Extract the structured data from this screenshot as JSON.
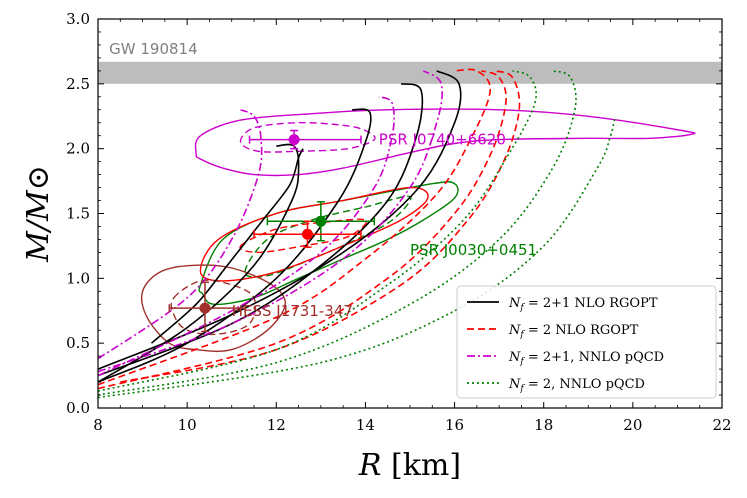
{
  "chart_data": {
    "type": "line",
    "xlabel": "R [km]",
    "ylabel": "M/M⊙",
    "xlim": [
      8,
      22
    ],
    "ylim": [
      0,
      3
    ],
    "xticks": [
      "8",
      "10",
      "12",
      "14",
      "16",
      "18",
      "20",
      "22"
    ],
    "yticks": [
      "0.0",
      "0.5",
      "1.0",
      "1.5",
      "2.0",
      "2.5",
      "3.0"
    ],
    "band": {
      "label": "GW 190814",
      "ymin": 2.5,
      "ymax": 2.67,
      "color": "#bdbdbd"
    },
    "legend": [
      {
        "label": "N_f = 2+1 NLO RGOPT",
        "color": "#000000",
        "dash": "solid"
      },
      {
        "label": "N_f = 2 NLO RGOPT",
        "color": "#ff0000",
        "dash": "dashed"
      },
      {
        "label": "N_f = 2+1, NNLO pQCD",
        "color": "#cc00cc",
        "dash": "dashdot"
      },
      {
        "label": "N_f = 2, NNLO pQCD",
        "color": "#008000",
        "dash": "dotted"
      }
    ],
    "series": [
      {
        "name": "nf21_rgopt_a",
        "group": 0,
        "points": [
          [
            8,
            0.2
          ],
          [
            10,
            0.62
          ],
          [
            11.5,
            1.1
          ],
          [
            12.35,
            1.6
          ],
          [
            12.5,
            1.85
          ],
          [
            12.4,
            2.02
          ],
          [
            12.0,
            2.02
          ]
        ]
      },
      {
        "name": "nf21_rgopt_b",
        "group": 0,
        "points": [
          [
            8,
            0.2
          ],
          [
            10,
            0.5
          ],
          [
            12,
            1.0
          ],
          [
            13.4,
            1.6
          ],
          [
            14,
            2.05
          ],
          [
            14.1,
            2.28
          ],
          [
            13.7,
            2.3
          ]
        ]
      },
      {
        "name": "nf21_rgopt_c",
        "group": 0,
        "points": [
          [
            8,
            0.25
          ],
          [
            11,
            0.65
          ],
          [
            13,
            1.1
          ],
          [
            14.5,
            1.6
          ],
          [
            15.15,
            2.1
          ],
          [
            15.25,
            2.45
          ],
          [
            14.8,
            2.5
          ]
        ]
      },
      {
        "name": "nf21_rgopt_d",
        "group": 0,
        "points": [
          [
            8,
            0.3
          ],
          [
            11,
            0.72
          ],
          [
            13.5,
            1.2
          ],
          [
            15.2,
            1.7
          ],
          [
            16,
            2.2
          ],
          [
            16.1,
            2.5
          ],
          [
            15.6,
            2.6
          ]
        ]
      },
      {
        "name": "nf21_rgopt_e",
        "group": 0,
        "points": [
          [
            9.2,
            0.5
          ],
          [
            10.2,
            0.8
          ],
          [
            10.9,
            1.1
          ],
          [
            11.7,
            1.45
          ],
          [
            12.3,
            1.72
          ],
          [
            12.5,
            1.93
          ],
          [
            12.6,
            2.0
          ]
        ]
      },
      {
        "name": "nf2_rgopt_a",
        "group": 1,
        "points": [
          [
            8,
            0.18
          ],
          [
            12,
            0.7
          ],
          [
            14,
            1.15
          ],
          [
            15.6,
            1.65
          ],
          [
            16.4,
            2.1
          ],
          [
            16.8,
            2.45
          ],
          [
            16.5,
            2.6
          ],
          [
            16.0,
            2.6
          ]
        ]
      },
      {
        "name": "nf2_rgopt_b",
        "group": 1,
        "points": [
          [
            8,
            0.15
          ],
          [
            12,
            0.5
          ],
          [
            14.5,
            1.0
          ],
          [
            16,
            1.5
          ],
          [
            16.8,
            1.95
          ],
          [
            17.15,
            2.35
          ],
          [
            17.0,
            2.55
          ],
          [
            16.6,
            2.6
          ]
        ]
      },
      {
        "name": "nf2_rgopt_c",
        "group": 1,
        "points": [
          [
            8.5,
            0.2
          ],
          [
            12,
            0.45
          ],
          [
            14.8,
            0.95
          ],
          [
            16.3,
            1.45
          ],
          [
            17.1,
            1.9
          ],
          [
            17.45,
            2.3
          ],
          [
            17.3,
            2.55
          ],
          [
            16.9,
            2.6
          ]
        ]
      },
      {
        "name": "nf21_pqcd_a",
        "group": 2,
        "points": [
          [
            8,
            0.38
          ],
          [
            10,
            0.85
          ],
          [
            11,
            1.3
          ],
          [
            11.6,
            1.8
          ],
          [
            11.65,
            2.1
          ],
          [
            11.5,
            2.25
          ],
          [
            11.2,
            2.3
          ]
        ]
      },
      {
        "name": "nf21_pqcd_b",
        "group": 2,
        "points": [
          [
            8,
            0.25
          ],
          [
            11,
            0.75
          ],
          [
            13,
            1.2
          ],
          [
            14.2,
            1.7
          ],
          [
            14.6,
            2.1
          ],
          [
            14.6,
            2.35
          ],
          [
            14.3,
            2.4
          ]
        ]
      },
      {
        "name": "nf21_pqcd_c",
        "group": 2,
        "points": [
          [
            8,
            0.28
          ],
          [
            11,
            0.65
          ],
          [
            13.5,
            1.15
          ],
          [
            15,
            1.7
          ],
          [
            15.6,
            2.2
          ],
          [
            15.7,
            2.5
          ],
          [
            15.3,
            2.6
          ]
        ]
      },
      {
        "name": "nf2_pqcd_a",
        "group": 3,
        "points": [
          [
            8,
            0.13
          ],
          [
            12,
            0.45
          ],
          [
            14.5,
            0.95
          ],
          [
            16.2,
            1.45
          ],
          [
            17.2,
            1.95
          ],
          [
            17.8,
            2.35
          ],
          [
            17.7,
            2.55
          ],
          [
            17.3,
            2.6
          ]
        ]
      },
      {
        "name": "nf2_pqcd_b",
        "group": 3,
        "points": [
          [
            8,
            0.1
          ],
          [
            12,
            0.35
          ],
          [
            15,
            0.8
          ],
          [
            17,
            1.3
          ],
          [
            18.2,
            1.85
          ],
          [
            18.7,
            2.3
          ],
          [
            18.6,
            2.55
          ],
          [
            18.2,
            2.6
          ]
        ]
      },
      {
        "name": "nf2_pqcd_c",
        "group": 3,
        "points": [
          [
            8,
            0.08
          ],
          [
            13,
            0.35
          ],
          [
            16,
            0.75
          ],
          [
            18,
            1.25
          ],
          [
            19.2,
            1.85
          ],
          [
            19.5,
            2.1
          ],
          [
            19.6,
            2.25
          ]
        ]
      }
    ],
    "contours": [
      {
        "name": "psr_j0740_outer",
        "color": "#cc00cc",
        "dash": "solid",
        "points": [
          [
            10.2,
            1.96
          ],
          [
            10.3,
            2.1
          ],
          [
            11.2,
            2.22
          ],
          [
            12.8,
            2.27
          ],
          [
            14.5,
            2.3
          ],
          [
            17,
            2.3
          ],
          [
            19,
            2.25
          ],
          [
            21.1,
            2.14
          ],
          [
            21.3,
            2.11
          ],
          [
            20.4,
            2.08
          ],
          [
            19,
            2.08
          ],
          [
            17,
            2.07
          ],
          [
            16,
            2.04
          ],
          [
            15,
            1.97
          ],
          [
            13.5,
            1.85
          ],
          [
            12.5,
            1.8
          ],
          [
            11.5,
            1.8
          ],
          [
            10.8,
            1.85
          ],
          [
            10.3,
            1.92
          ]
        ]
      },
      {
        "name": "psr_j0740_inner",
        "color": "#cc00cc",
        "dash": "dashed",
        "points": [
          [
            11.2,
            2.05
          ],
          [
            11.5,
            2.16
          ],
          [
            12.5,
            2.2
          ],
          [
            13.5,
            2.18
          ],
          [
            14,
            2.14
          ],
          [
            14.2,
            2.07
          ],
          [
            13.6,
            2.0
          ],
          [
            12.5,
            1.98
          ],
          [
            11.6,
            1.98
          ]
        ]
      },
      {
        "name": "psr_j0030_outer",
        "color": "#008000",
        "dash": "solid",
        "points": [
          [
            10.3,
            0.95
          ],
          [
            10.8,
            1.3
          ],
          [
            12,
            1.5
          ],
          [
            13.5,
            1.6
          ],
          [
            15.5,
            1.73
          ],
          [
            16.0,
            1.73
          ],
          [
            16.0,
            1.62
          ],
          [
            15.3,
            1.45
          ],
          [
            14.5,
            1.3
          ],
          [
            13.5,
            1.15
          ],
          [
            12.5,
            1.0
          ],
          [
            11.5,
            0.85
          ],
          [
            10.6,
            0.8
          ],
          [
            10.35,
            0.88
          ]
        ]
      },
      {
        "name": "psr_j0030_inner",
        "color": "#008000",
        "dash": "dashed",
        "points": [
          [
            11.3,
            1.05
          ],
          [
            11.8,
            1.3
          ],
          [
            12.8,
            1.45
          ],
          [
            14,
            1.55
          ],
          [
            15,
            1.63
          ],
          [
            14.6,
            1.45
          ],
          [
            13.8,
            1.3
          ],
          [
            12.8,
            1.15
          ],
          [
            11.8,
            1.02
          ]
        ]
      },
      {
        "name": "psr_j0437_outer",
        "color": "#ff0000",
        "dash": "solid",
        "points": [
          [
            10.3,
            1.05
          ],
          [
            10.7,
            1.3
          ],
          [
            12,
            1.5
          ],
          [
            13.5,
            1.6
          ],
          [
            15,
            1.7
          ],
          [
            15.4,
            1.62
          ],
          [
            14.8,
            1.45
          ],
          [
            13.5,
            1.25
          ],
          [
            12,
            1.05
          ],
          [
            10.8,
            0.98
          ]
        ]
      },
      {
        "name": "psr_j0437_inner",
        "color": "#ff0000",
        "dash": "dashed",
        "points": [
          [
            11.2,
            1.25
          ],
          [
            12,
            1.38
          ],
          [
            13,
            1.43
          ],
          [
            14,
            1.45
          ],
          [
            13.6,
            1.32
          ],
          [
            12.6,
            1.25
          ],
          [
            11.6,
            1.2
          ]
        ]
      },
      {
        "name": "hess_outer",
        "color": "#a0302a",
        "dash": "solid",
        "points": [
          [
            9.0,
            0.9
          ],
          [
            9.4,
            1.05
          ],
          [
            10.1,
            1.1
          ],
          [
            11,
            1.08
          ],
          [
            11.9,
            0.95
          ],
          [
            12.2,
            0.8
          ],
          [
            11.8,
            0.6
          ],
          [
            11,
            0.45
          ],
          [
            10.2,
            0.45
          ],
          [
            9.6,
            0.5
          ],
          [
            9.1,
            0.7
          ]
        ]
      },
      {
        "name": "hess_inner",
        "color": "#a0302a",
        "dash": "dashed",
        "points": [
          [
            9.7,
            0.85
          ],
          [
            10.3,
            0.98
          ],
          [
            11,
            0.95
          ],
          [
            11.5,
            0.85
          ],
          [
            11.4,
            0.65
          ],
          [
            10.7,
            0.57
          ],
          [
            10.0,
            0.6
          ],
          [
            9.7,
            0.72
          ]
        ]
      }
    ],
    "points": [
      {
        "name": "PSR J0740+6620",
        "label": "PSR J0740+6620",
        "x": 12.4,
        "y": 2.07,
        "xerr": [
          1.0,
          1.5
        ],
        "yerr": [
          0.07,
          0.07
        ],
        "color": "#cc00cc",
        "label_x": 14.3,
        "label_y": 2.07
      },
      {
        "name": "PSR J0030+0451",
        "label": "PSR J0030+0451",
        "x": 13.0,
        "y": 1.44,
        "xerr": [
          1.2,
          1.2
        ],
        "yerr": [
          0.15,
          0.15
        ],
        "color": "#008000",
        "label_x": 15.0,
        "label_y": 1.22
      },
      {
        "name": "PSR J0437",
        "label": "",
        "x": 12.7,
        "y": 1.34,
        "xerr": [
          1.2,
          1.2
        ],
        "yerr": [
          0.1,
          0.1
        ],
        "color": "#ff0000"
      },
      {
        "name": "HESS J1731-347",
        "label": "HESS J1731-347",
        "x": 10.4,
        "y": 0.77,
        "xerr": [
          0.8,
          0.9
        ],
        "yerr": [
          0.18,
          0.2
        ],
        "color": "#a0302a",
        "label_x": 11.0,
        "label_y": 0.75
      }
    ]
  }
}
